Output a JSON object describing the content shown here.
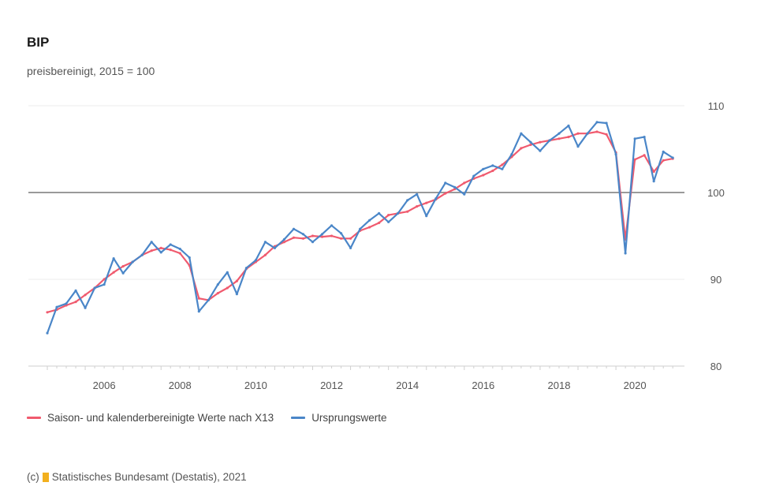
{
  "title": "BIP",
  "subtitle": "preisbereinigt, 2015 = 100",
  "colors": {
    "adjusted": "#f05a6e",
    "original": "#4a86c8",
    "gridline": "#eeeeee",
    "baseline": "#9a9a9a"
  },
  "legend": [
    {
      "label": "Saison- und kalenderbereinigte Werte nach X13",
      "color": "#f05a6e"
    },
    {
      "label": "Ursprungswerte",
      "color": "#4a86c8"
    }
  ],
  "source": {
    "prefix": "(c)",
    "text": "Statistisches Bundesamt (Destatis), 2021"
  },
  "chart_data": {
    "type": "line",
    "title": "BIP",
    "subtitle": "preisbereinigt, 2015 = 100",
    "ylim": [
      80,
      110
    ],
    "yticks": [
      "110",
      "100",
      "90",
      "80"
    ],
    "yticks_values": [
      110,
      100,
      90,
      80
    ],
    "xtick_labels": [
      "2006",
      "2008",
      "2010",
      "2012",
      "2014",
      "2016",
      "2018",
      "2020"
    ],
    "xtick_years": [
      2006,
      2008,
      2010,
      2012,
      2014,
      2016,
      2018,
      2020
    ],
    "reference_line": 100,
    "grid": true,
    "legend_position": "bottom",
    "series": [
      {
        "name": "Saison- und kalenderbereinigte Werte nach X13",
        "color": "#f05a6e",
        "x": [
          2005.0,
          2005.25,
          2005.5,
          2005.75,
          2006.0,
          2006.25,
          2006.5,
          2006.75,
          2007.0,
          2007.25,
          2007.5,
          2007.75,
          2008.0,
          2008.25,
          2008.5,
          2008.75,
          2009.0,
          2009.25,
          2009.5,
          2009.75,
          2010.0,
          2010.25,
          2010.5,
          2010.75,
          2011.0,
          2011.25,
          2011.5,
          2011.75,
          2012.0,
          2012.25,
          2012.5,
          2012.75,
          2013.0,
          2013.25,
          2013.5,
          2013.75,
          2014.0,
          2014.25,
          2014.5,
          2014.75,
          2015.0,
          2015.25,
          2015.5,
          2015.75,
          2016.0,
          2016.25,
          2016.5,
          2016.75,
          2017.0,
          2017.25,
          2017.5,
          2017.75,
          2018.0,
          2018.25,
          2018.5,
          2018.75,
          2019.0,
          2019.25,
          2019.5,
          2019.75,
          2020.0,
          2020.25,
          2020.5,
          2020.75,
          2021.0,
          2021.25,
          2021.5
        ],
        "values": [
          86.2,
          86.5,
          87.0,
          87.4,
          88.2,
          89.0,
          90.0,
          90.8,
          91.5,
          92.0,
          92.8,
          93.3,
          93.6,
          93.4,
          93.0,
          91.6,
          87.8,
          87.6,
          88.4,
          89.0,
          89.8,
          91.2,
          92.0,
          92.8,
          93.8,
          94.3,
          94.8,
          94.7,
          95.0,
          94.9,
          95.0,
          94.7,
          94.7,
          95.6,
          96.0,
          96.5,
          97.4,
          97.6,
          97.8,
          98.4,
          98.8,
          99.2,
          99.9,
          100.4,
          101.1,
          101.6,
          102.0,
          102.5,
          103.2,
          104.1,
          105.1,
          105.5,
          105.8,
          106.0,
          106.2,
          106.4,
          106.8,
          106.8,
          107.0,
          106.7,
          104.6,
          94.6,
          103.8,
          104.3,
          102.4,
          103.7,
          103.9
        ]
      },
      {
        "name": "Ursprungswerte",
        "color": "#4a86c8",
        "x": [
          2005.0,
          2005.25,
          2005.5,
          2005.75,
          2006.0,
          2006.25,
          2006.5,
          2006.75,
          2007.0,
          2007.25,
          2007.5,
          2007.75,
          2008.0,
          2008.25,
          2008.5,
          2008.75,
          2009.0,
          2009.25,
          2009.5,
          2009.75,
          2010.0,
          2010.25,
          2010.5,
          2010.75,
          2011.0,
          2011.25,
          2011.5,
          2011.75,
          2012.0,
          2012.25,
          2012.5,
          2012.75,
          2013.0,
          2013.25,
          2013.5,
          2013.75,
          2014.0,
          2014.25,
          2014.5,
          2014.75,
          2015.0,
          2015.25,
          2015.5,
          2015.75,
          2016.0,
          2016.25,
          2016.5,
          2016.75,
          2017.0,
          2017.25,
          2017.5,
          2017.75,
          2018.0,
          2018.25,
          2018.5,
          2018.75,
          2019.0,
          2019.25,
          2019.5,
          2019.75,
          2020.0,
          2020.25,
          2020.5,
          2020.75,
          2021.0,
          2021.25,
          2021.5
        ],
        "values": [
          83.8,
          86.8,
          87.2,
          88.7,
          86.7,
          89.0,
          89.4,
          92.4,
          90.7,
          92.0,
          92.8,
          94.3,
          93.1,
          94.0,
          93.5,
          92.5,
          86.3,
          87.6,
          89.4,
          90.8,
          88.3,
          91.3,
          92.2,
          94.3,
          93.6,
          94.6,
          95.8,
          95.2,
          94.3,
          95.2,
          96.2,
          95.3,
          93.6,
          95.8,
          96.8,
          97.6,
          96.6,
          97.6,
          99.1,
          99.8,
          97.3,
          99.3,
          101.1,
          100.6,
          99.8,
          101.9,
          102.7,
          103.1,
          102.7,
          104.4,
          106.8,
          105.8,
          104.8,
          106.0,
          106.8,
          107.7,
          105.3,
          106.8,
          108.1,
          108.0,
          104.4,
          93.0,
          106.2,
          106.4,
          101.3,
          104.7,
          104.0
        ]
      }
    ]
  }
}
